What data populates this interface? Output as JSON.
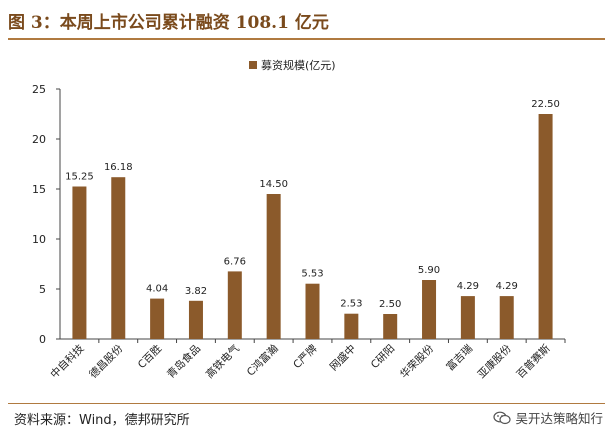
{
  "figure": {
    "title": "图 3：本周上市公司累计融资 108.1 亿元",
    "source": "资料来源：Wind，德邦研究所",
    "watermark": "吴开达策略知行",
    "watermark_icon": "wechat-icon"
  },
  "chart_data": {
    "type": "bar",
    "title": "",
    "xlabel": "",
    "ylabel": "",
    "ylim": [
      0,
      25
    ],
    "yticks": [
      0,
      5,
      10,
      15,
      20,
      25
    ],
    "grid": false,
    "legend_position": "top-center",
    "bar_color": "#8b5a2b",
    "categories": [
      "中自科技",
      "德昌股份",
      "C百胜",
      "青岛食品",
      "高铁电气",
      "C鸿富瀚",
      "C严牌",
      "网盛中",
      "C研阳",
      "华荣股份",
      "富吉瑞",
      "亚康股份",
      "百普赛斯"
    ],
    "series": [
      {
        "name": "募资规模(亿元)",
        "values": [
          15.25,
          16.18,
          4.04,
          3.82,
          6.76,
          14.5,
          5.53,
          2.53,
          2.5,
          5.9,
          4.29,
          4.29,
          22.5
        ],
        "labels": [
          "15.25",
          "16.18",
          "4.04",
          "3.82",
          "6.76",
          "14.50",
          "5.53",
          "2.53",
          "2.50",
          "5.90",
          "4.29",
          "4.29",
          "22.50"
        ]
      }
    ]
  }
}
